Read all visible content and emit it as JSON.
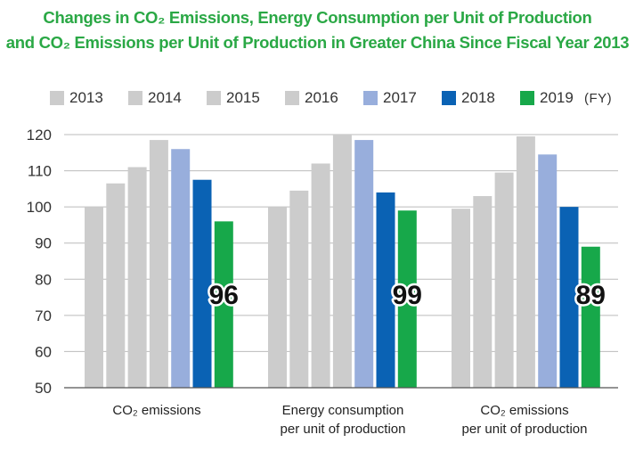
{
  "title": {
    "line1": "Changes in CO₂ Emissions, Energy Consumption per Unit of Production",
    "line2": "and CO₂ Emissions per Unit of Production in Greater China Since Fiscal Year 2013"
  },
  "legend_unit": "(FY)",
  "colors": {
    "2013": "#cccccc",
    "2014": "#cccccc",
    "2015": "#cccccc",
    "2016": "#cccccc",
    "2017": "#98aedc",
    "2018": "#0a62b4",
    "2019": "#17a84a",
    "title": "#2aa845",
    "grid": "#bbbbbb",
    "axis": "#555555"
  },
  "chart_data": {
    "type": "bar",
    "title": "Changes in CO₂ Emissions, Energy Consumption per Unit of Production and CO₂ Emissions per Unit of Production in Greater China Since Fiscal Year 2013",
    "categories": [
      "CO₂ emissions",
      "Energy consumption per unit of production",
      "CO₂ emissions per unit of production"
    ],
    "series": [
      {
        "name": "2013",
        "values": [
          100,
          100,
          99.5
        ]
      },
      {
        "name": "2014",
        "values": [
          106.5,
          104.5,
          103
        ]
      },
      {
        "name": "2015",
        "values": [
          111,
          112,
          109.5
        ]
      },
      {
        "name": "2016",
        "values": [
          118.5,
          120,
          119.5
        ]
      },
      {
        "name": "2017",
        "values": [
          116,
          118.5,
          114.5
        ]
      },
      {
        "name": "2018",
        "values": [
          107.5,
          104,
          100
        ]
      },
      {
        "name": "2019",
        "values": [
          96,
          99,
          89
        ]
      }
    ],
    "data_labels": [
      "96",
      "99",
      "89"
    ],
    "ylim": [
      50,
      120
    ],
    "yticks": [
      50,
      60,
      70,
      80,
      90,
      100,
      110,
      120
    ],
    "grid": true,
    "legend_position": "top"
  }
}
